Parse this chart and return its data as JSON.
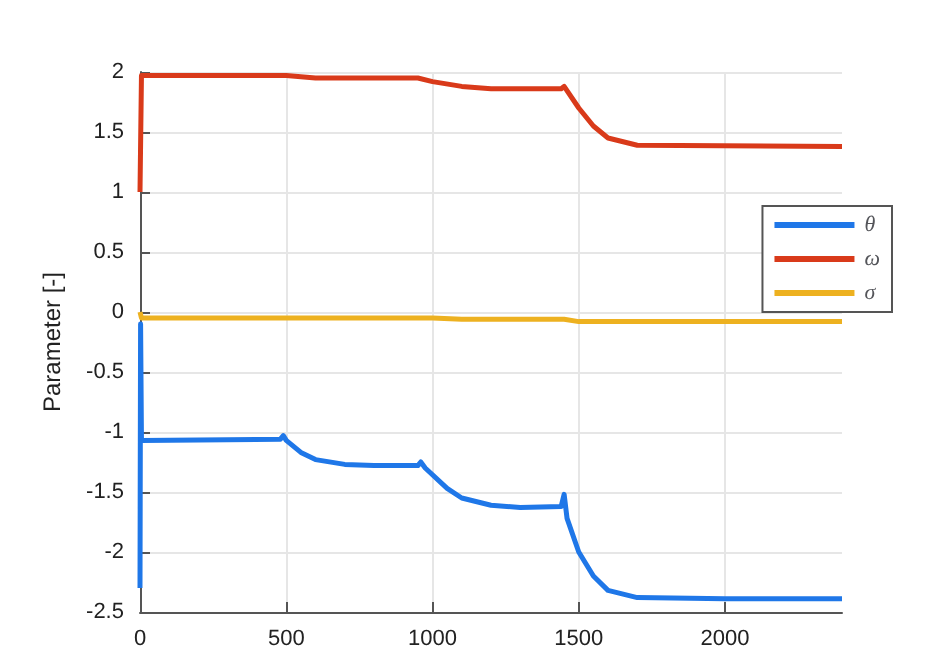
{
  "chart_data": {
    "type": "line",
    "ylabel": "Parameter [-]",
    "xlim": [
      0,
      2400
    ],
    "xticks": [
      0,
      500,
      1000,
      1500,
      2000
    ],
    "ylim": [
      -2.5,
      2
    ],
    "yticks": [
      -2.5,
      -2,
      -1.5,
      -1,
      -0.5,
      0,
      0.5,
      1,
      1.5,
      2
    ],
    "grid": true,
    "legend": "right",
    "line_style": "solid",
    "marker": "none",
    "series": [
      {
        "name": "θ",
        "color": "#1f77e8",
        "x": [
          0,
          2,
          5,
          480,
          490,
          500,
          550,
          600,
          700,
          800,
          950,
          960,
          975,
          1050,
          1100,
          1200,
          1300,
          1440,
          1450,
          1460,
          1500,
          1550,
          1600,
          1700,
          2000,
          2400
        ],
        "values": [
          -2.3,
          -0.1,
          -1.07,
          -1.06,
          -1.03,
          -1.07,
          -1.17,
          -1.23,
          -1.27,
          -1.28,
          -1.28,
          -1.25,
          -1.3,
          -1.47,
          -1.55,
          -1.61,
          -1.63,
          -1.62,
          -1.52,
          -1.72,
          -2.0,
          -2.2,
          -2.32,
          -2.38,
          -2.39,
          -2.39
        ]
      },
      {
        "name": "ω",
        "color": "#d93a1a",
        "x": [
          0,
          5,
          500,
          600,
          950,
          1000,
          1100,
          1200,
          1440,
          1450,
          1500,
          1550,
          1600,
          1700,
          2400
        ],
        "values": [
          1.0,
          1.97,
          1.97,
          1.95,
          1.95,
          1.92,
          1.88,
          1.86,
          1.86,
          1.88,
          1.7,
          1.55,
          1.45,
          1.39,
          1.38
        ]
      },
      {
        "name": "σ",
        "color": "#edb120",
        "x": [
          0,
          5,
          1000,
          1100,
          1450,
          1500,
          2400
        ],
        "values": [
          0,
          -0.05,
          -0.05,
          -0.06,
          -0.06,
          -0.08,
          -0.08
        ]
      }
    ]
  }
}
